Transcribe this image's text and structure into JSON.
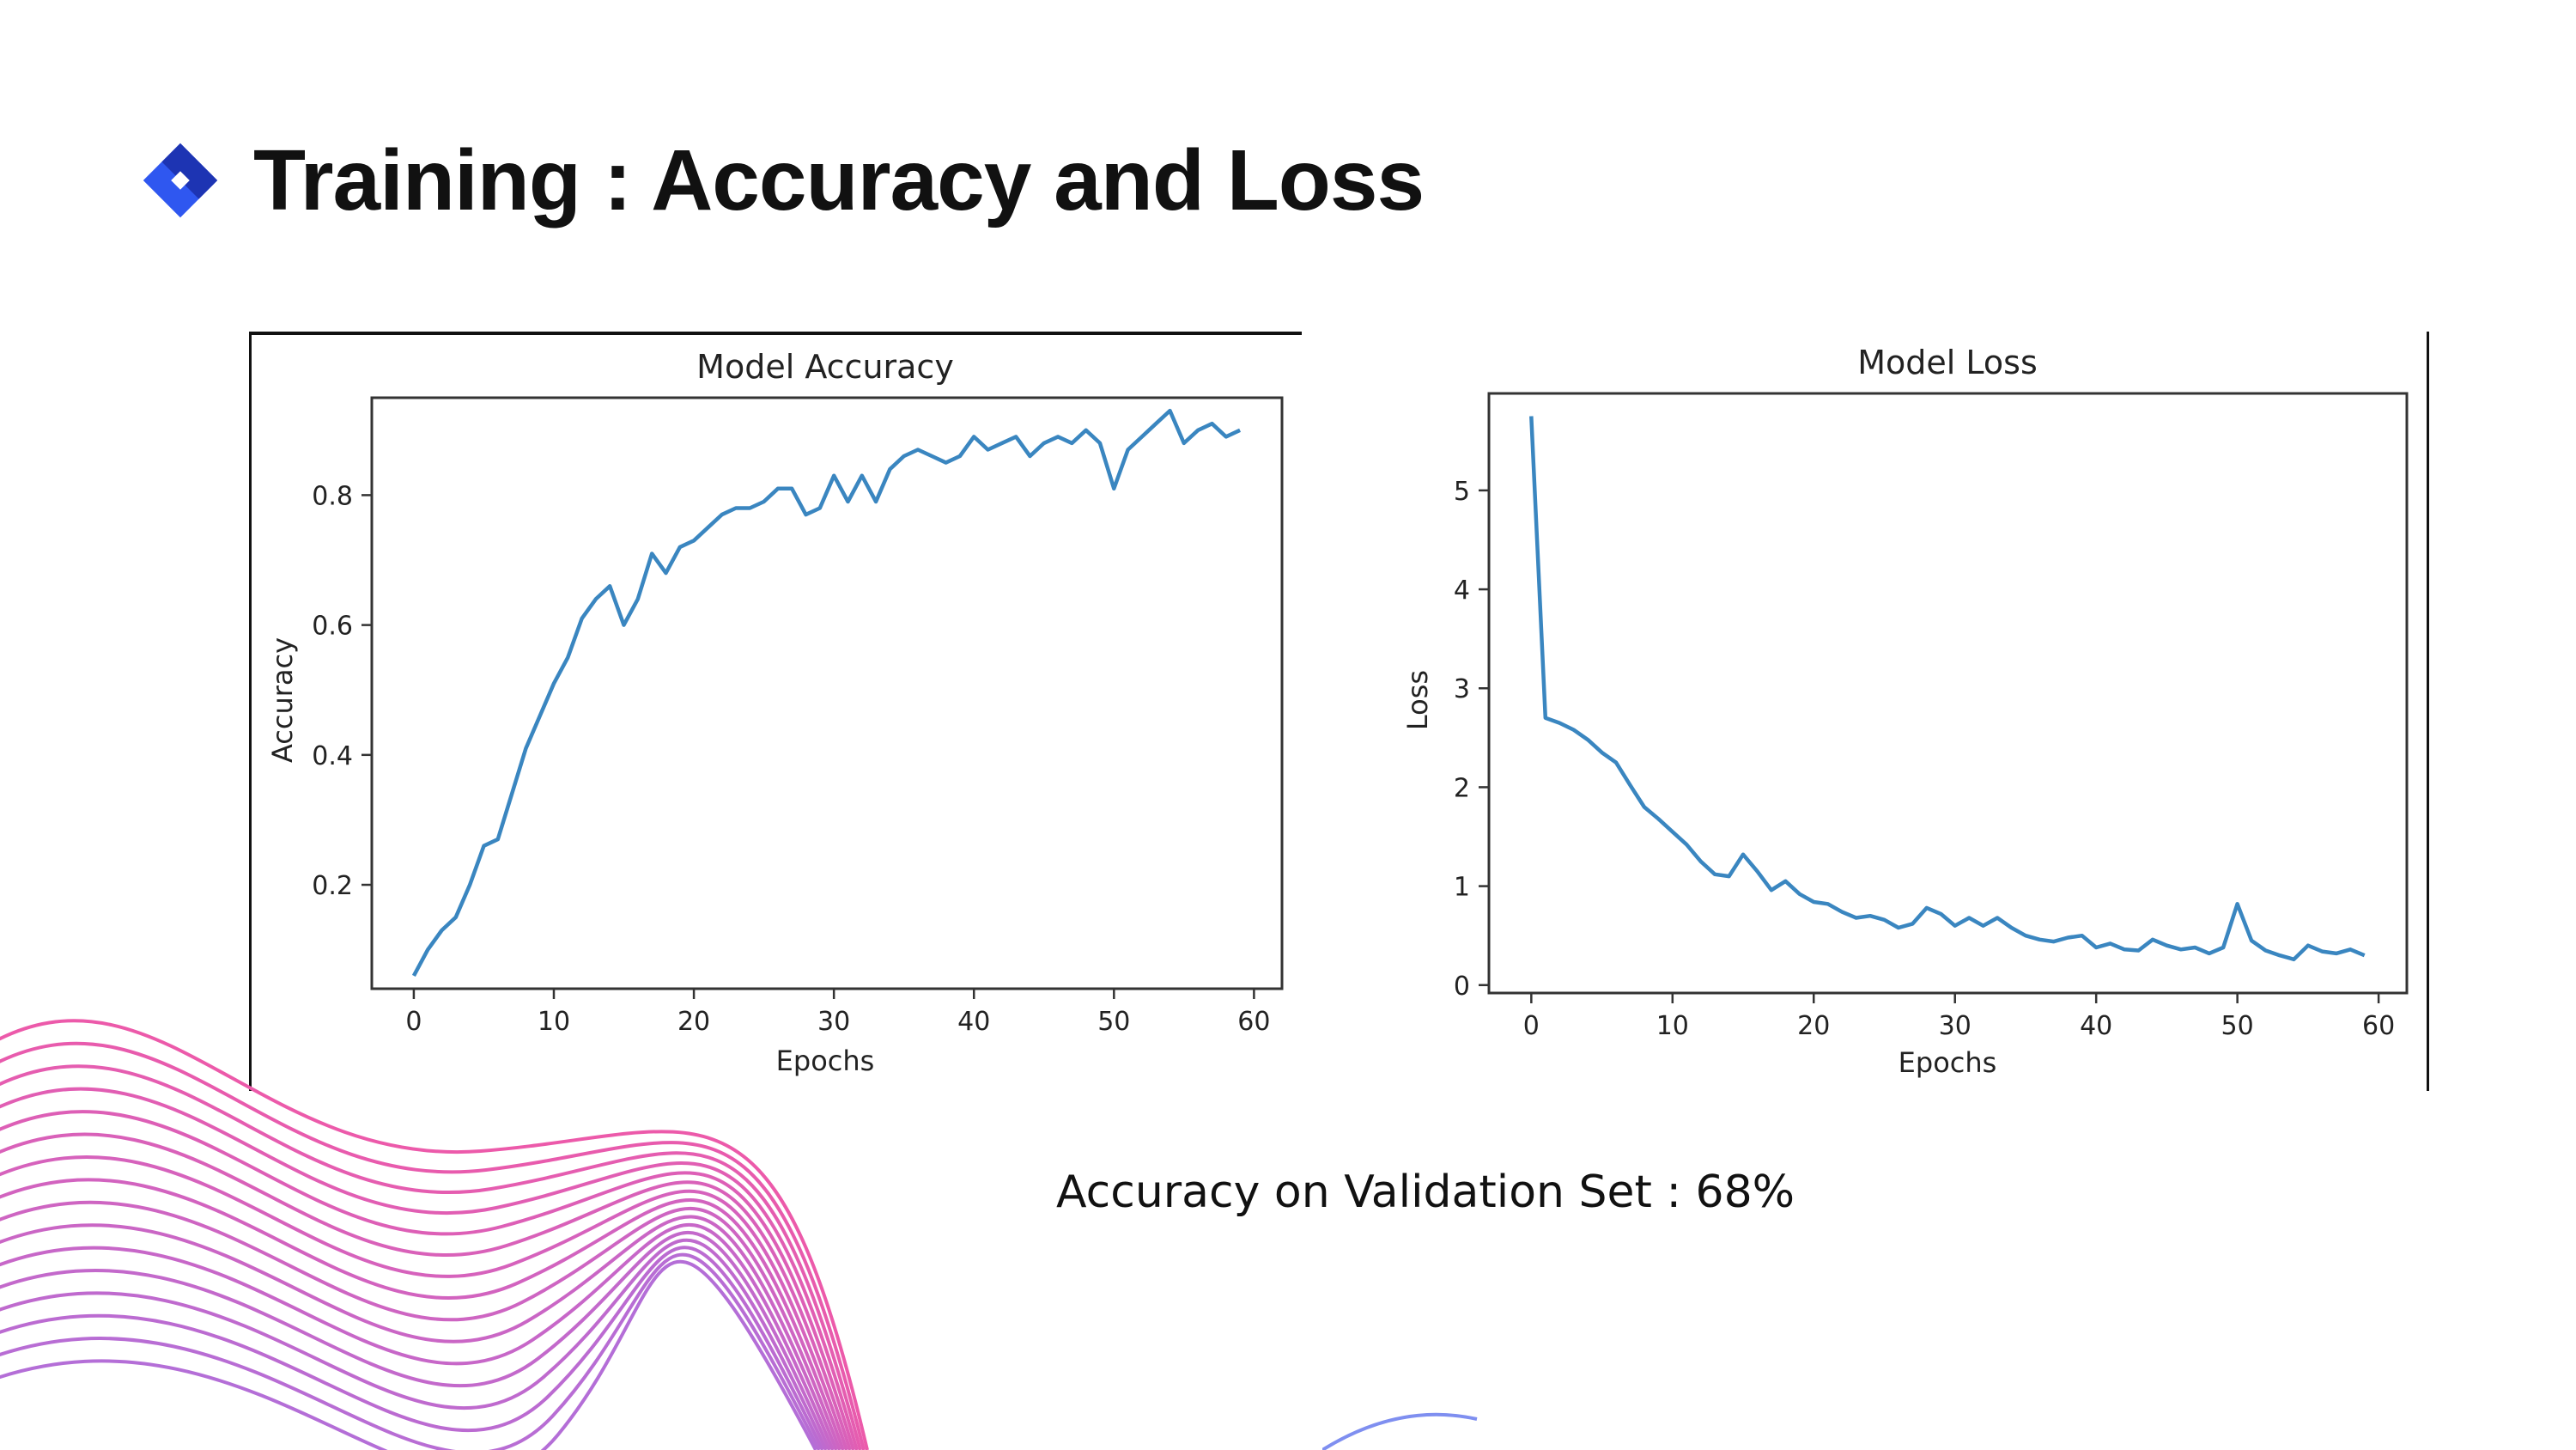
{
  "slide": {
    "title": "Training : Accuracy and Loss",
    "caption": "Accuracy on Validation Set : 68%",
    "icon": "diamond-bullet-icon",
    "accent_color": "#2f57f0"
  },
  "chart_data": [
    {
      "type": "line",
      "title": "Model Accuracy",
      "xlabel": "Epochs",
      "ylabel": "Accuracy",
      "xlim": [
        -3,
        62
      ],
      "ylim": [
        0.04,
        0.95
      ],
      "xticks": [
        "0",
        "10",
        "20",
        "30",
        "40",
        "50",
        "60"
      ],
      "yticks": [
        "0.2",
        "0.4",
        "0.6",
        "0.8"
      ],
      "grid": false,
      "color": "#3a86c0",
      "series": [
        {
          "x": [
            0,
            1,
            2,
            3,
            4,
            5,
            6,
            7,
            8,
            9,
            10,
            11,
            12,
            13,
            14,
            15,
            16,
            17,
            18,
            19,
            20,
            21,
            22,
            23,
            24,
            25,
            26,
            27,
            28,
            29,
            30,
            31,
            32,
            33,
            34,
            35,
            36,
            37,
            38,
            39,
            40,
            41,
            42,
            43,
            44,
            45,
            46,
            47,
            48,
            49,
            50,
            51,
            52,
            53,
            54,
            55,
            56,
            57,
            58,
            59
          ],
          "values": [
            0.06,
            0.1,
            0.13,
            0.15,
            0.2,
            0.26,
            0.27,
            0.34,
            0.41,
            0.46,
            0.51,
            0.55,
            0.61,
            0.64,
            0.66,
            0.6,
            0.64,
            0.71,
            0.68,
            0.72,
            0.73,
            0.75,
            0.77,
            0.78,
            0.78,
            0.79,
            0.81,
            0.81,
            0.77,
            0.78,
            0.83,
            0.79,
            0.83,
            0.79,
            0.84,
            0.86,
            0.87,
            0.86,
            0.85,
            0.86,
            0.89,
            0.87,
            0.88,
            0.89,
            0.86,
            0.88,
            0.89,
            0.88,
            0.9,
            0.88,
            0.81,
            0.87,
            0.89,
            0.91,
            0.93,
            0.88,
            0.9,
            0.91,
            0.89,
            0.9
          ]
        }
      ]
    },
    {
      "type": "line",
      "title": "Model Loss",
      "xlabel": "Epochs",
      "ylabel": "Loss",
      "xlim": [
        -3,
        62
      ],
      "ylim": [
        -0.08,
        5.98
      ],
      "xticks": [
        "0",
        "10",
        "20",
        "30",
        "40",
        "50",
        "60"
      ],
      "yticks": [
        "0",
        "1",
        "2",
        "3",
        "4",
        "5"
      ],
      "grid": false,
      "color": "#3a86c0",
      "series": [
        {
          "x": [
            0,
            1,
            2,
            3,
            4,
            5,
            6,
            7,
            8,
            9,
            10,
            11,
            12,
            13,
            14,
            15,
            16,
            17,
            18,
            19,
            20,
            21,
            22,
            23,
            24,
            25,
            26,
            27,
            28,
            29,
            30,
            31,
            32,
            33,
            34,
            35,
            36,
            37,
            38,
            39,
            40,
            41,
            42,
            43,
            44,
            45,
            46,
            47,
            48,
            49,
            50,
            51,
            52,
            53,
            54,
            55,
            56,
            57,
            58,
            59
          ],
          "values": [
            5.75,
            2.7,
            2.65,
            2.58,
            2.48,
            2.35,
            2.25,
            2.02,
            1.8,
            1.68,
            1.55,
            1.42,
            1.25,
            1.12,
            1.1,
            1.32,
            1.15,
            0.96,
            1.05,
            0.92,
            0.84,
            0.82,
            0.74,
            0.68,
            0.7,
            0.66,
            0.58,
            0.62,
            0.78,
            0.72,
            0.6,
            0.68,
            0.6,
            0.68,
            0.58,
            0.5,
            0.46,
            0.44,
            0.48,
            0.5,
            0.38,
            0.42,
            0.36,
            0.35,
            0.46,
            0.4,
            0.36,
            0.38,
            0.32,
            0.38,
            0.82,
            0.45,
            0.35,
            0.3,
            0.26,
            0.4,
            0.34,
            0.32,
            0.36,
            0.3
          ]
        }
      ]
    }
  ]
}
